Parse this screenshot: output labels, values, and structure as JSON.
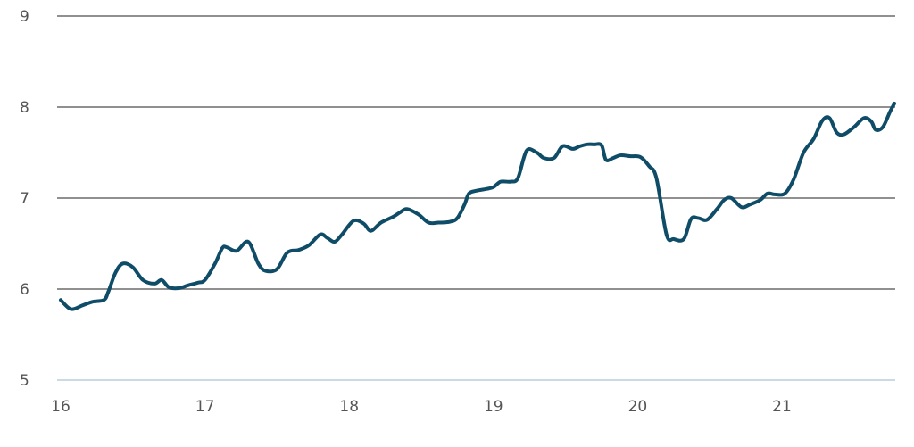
{
  "chart_data": {
    "type": "line",
    "title": "",
    "xlabel": "",
    "ylabel": "",
    "xlim": [
      16,
      21.8
    ],
    "ylim": [
      5,
      9
    ],
    "y_ticks": [
      5,
      6,
      7,
      8,
      9
    ],
    "y_tick_labels": [
      "5",
      "6",
      "7",
      "8",
      "9"
    ],
    "x_ticks": [
      16,
      17,
      18,
      19,
      20,
      21
    ],
    "x_tick_labels": [
      "16",
      "17",
      "18",
      "19",
      "20",
      "21"
    ],
    "grid": "horizontal",
    "legend": "none",
    "colors": {
      "line": "#0f4c68",
      "grid": "#6b6b6b",
      "baseline": "#b9cfde",
      "tick_text": "#555555"
    },
    "series": [
      {
        "x": [
          16.0,
          16.07,
          16.15,
          16.22,
          16.3,
          16.33,
          16.38,
          16.43,
          16.5,
          16.57,
          16.65,
          16.7,
          16.75,
          16.82,
          16.88,
          16.95,
          17.0,
          17.07,
          17.12,
          17.15,
          17.22,
          17.3,
          17.37,
          17.42,
          17.5,
          17.57,
          17.65,
          17.72,
          17.8,
          17.85,
          17.9,
          17.95,
          18.03,
          18.1,
          18.15,
          18.22,
          18.3,
          18.35,
          18.4,
          18.48,
          18.55,
          18.62,
          18.7,
          18.75,
          18.8,
          18.83,
          18.88,
          18.95,
          19.0,
          19.05,
          19.12,
          19.17,
          19.23,
          19.3,
          19.35,
          19.42,
          19.48,
          19.55,
          19.6,
          19.65,
          19.7,
          19.75,
          19.78,
          19.83,
          19.88,
          19.95,
          20.02,
          20.08,
          20.13,
          20.2,
          20.25,
          20.32,
          20.37,
          20.42,
          20.48,
          20.55,
          20.6,
          20.65,
          20.72,
          20.78,
          20.85,
          20.9,
          20.95,
          21.02,
          21.08,
          21.15,
          21.22,
          21.28,
          21.33,
          21.38,
          21.43,
          21.5,
          21.57,
          21.62,
          21.65,
          21.7,
          21.75,
          21.78
        ],
        "y": [
          5.88,
          5.78,
          5.82,
          5.86,
          5.88,
          5.97,
          6.18,
          6.28,
          6.24,
          6.1,
          6.06,
          6.1,
          6.02,
          6.01,
          6.04,
          6.07,
          6.1,
          6.28,
          6.45,
          6.46,
          6.42,
          6.52,
          6.28,
          6.2,
          6.22,
          6.4,
          6.43,
          6.48,
          6.6,
          6.56,
          6.52,
          6.6,
          6.75,
          6.72,
          6.64,
          6.73,
          6.79,
          6.84,
          6.88,
          6.82,
          6.73,
          6.73,
          6.74,
          6.78,
          6.93,
          7.05,
          7.08,
          7.1,
          7.12,
          7.18,
          7.18,
          7.22,
          7.52,
          7.5,
          7.44,
          7.44,
          7.57,
          7.54,
          7.57,
          7.59,
          7.59,
          7.58,
          7.42,
          7.44,
          7.47,
          7.46,
          7.45,
          7.35,
          7.22,
          6.6,
          6.55,
          6.55,
          6.77,
          6.78,
          6.76,
          6.88,
          6.98,
          7.0,
          6.9,
          6.93,
          6.98,
          7.05,
          7.04,
          7.05,
          7.2,
          7.5,
          7.65,
          7.85,
          7.88,
          7.72,
          7.7,
          7.78,
          7.88,
          7.84,
          7.75,
          7.78,
          7.95,
          8.04
        ]
      }
    ]
  }
}
